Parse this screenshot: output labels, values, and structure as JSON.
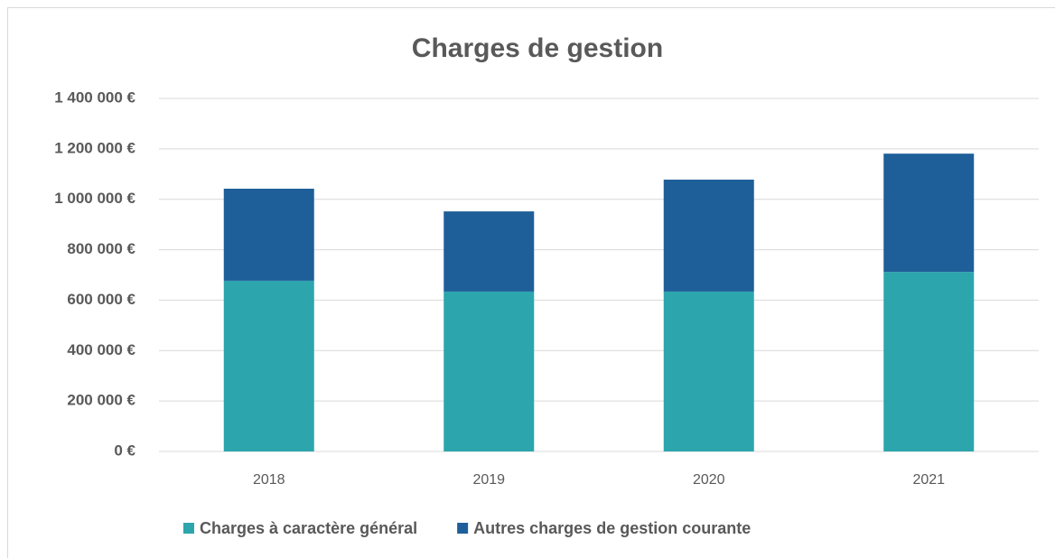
{
  "chart_data": {
    "type": "stacked_bar",
    "title": "Charges de gestion",
    "categories": [
      "2018",
      "2019",
      "2020",
      "2021"
    ],
    "series": [
      {
        "name": "Charges à caractère général",
        "color": "#2ca5ad",
        "values": [
          677000,
          634000,
          634000,
          712000
        ]
      },
      {
        "name": "Autres charges de gestion courante",
        "color": "#1f5f99",
        "values": [
          365000,
          318000,
          444000,
          469000
        ]
      }
    ],
    "ylim": [
      0,
      1400000
    ],
    "yticks": [
      {
        "value": 0,
        "label": "0 €"
      },
      {
        "value": 200000,
        "label": "200 000 €"
      },
      {
        "value": 400000,
        "label": "400 000 €"
      },
      {
        "value": 600000,
        "label": "600 000 €"
      },
      {
        "value": 800000,
        "label": "800 000 €"
      },
      {
        "value": 1000000,
        "label": "1 000 000 €"
      },
      {
        "value": 1200000,
        "label": "1 200 000 €"
      },
      {
        "value": 1400000,
        "label": "1 400 000 €"
      }
    ],
    "grid": true,
    "legend": "bottom"
  }
}
